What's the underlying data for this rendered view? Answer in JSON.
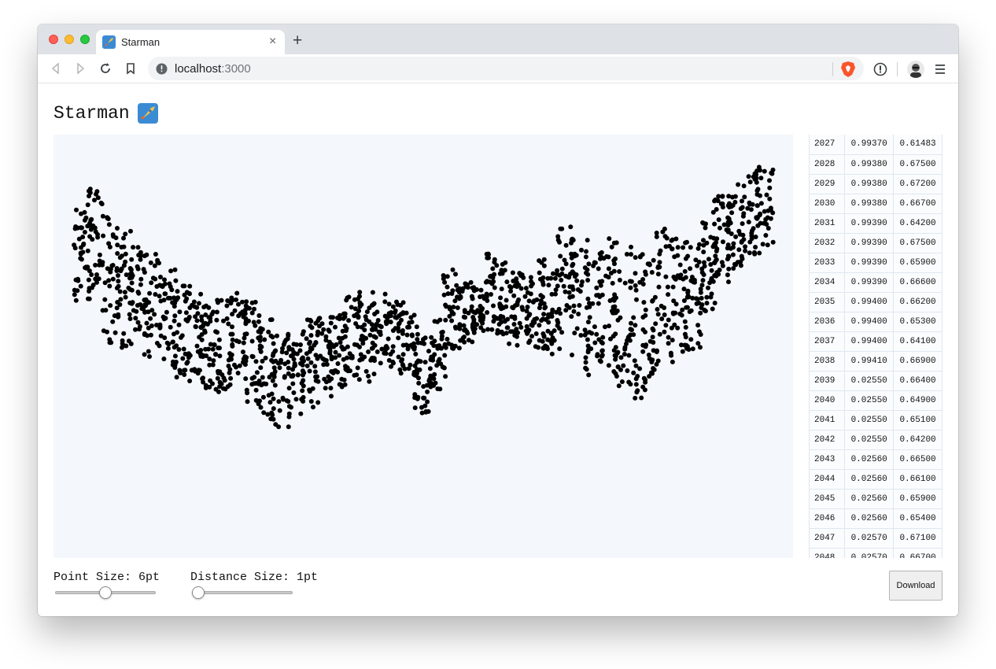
{
  "browser": {
    "tab": {
      "title": "Starman",
      "favicon": "rocket-emoji-icon"
    },
    "address": {
      "host": "localhost",
      "port": ":3000"
    }
  },
  "page": {
    "title": "Starman",
    "controls": {
      "point_size_label": "Point Size: 6pt",
      "point_size_value": 6,
      "point_size_level": 0.5,
      "distance_size_label": "Distance Size: 1pt",
      "distance_size_value": 1,
      "distance_size_level": 0.0,
      "download_label": "Download"
    },
    "table": {
      "rows": [
        [
          "2027",
          "0.99370",
          "0.61483"
        ],
        [
          "2028",
          "0.99380",
          "0.67500"
        ],
        [
          "2029",
          "0.99380",
          "0.67200"
        ],
        [
          "2030",
          "0.99380",
          "0.66700"
        ],
        [
          "2031",
          "0.99390",
          "0.64200"
        ],
        [
          "2032",
          "0.99390",
          "0.67500"
        ],
        [
          "2033",
          "0.99390",
          "0.65900"
        ],
        [
          "2034",
          "0.99390",
          "0.66600"
        ],
        [
          "2035",
          "0.99400",
          "0.66200"
        ],
        [
          "2036",
          "0.99400",
          "0.65300"
        ],
        [
          "2037",
          "0.99400",
          "0.64100"
        ],
        [
          "2038",
          "0.99410",
          "0.66900"
        ],
        [
          "2039",
          "0.02550",
          "0.66400"
        ],
        [
          "2040",
          "0.02550",
          "0.64900"
        ],
        [
          "2041",
          "0.02550",
          "0.65100"
        ],
        [
          "2042",
          "0.02550",
          "0.64200"
        ],
        [
          "2043",
          "0.02560",
          "0.66500"
        ],
        [
          "2044",
          "0.02560",
          "0.66100"
        ],
        [
          "2045",
          "0.02560",
          "0.65900"
        ],
        [
          "2046",
          "0.02560",
          "0.65400"
        ],
        [
          "2047",
          "0.02570",
          "0.67100"
        ],
        [
          "2048",
          "0.02570",
          "0.66700"
        ]
      ]
    }
  },
  "chart_data": {
    "type": "scatter",
    "title": "",
    "xlabel": "",
    "ylabel": "",
    "grid": false,
    "marker_color": "#000000",
    "background": "#f4f7fb",
    "columns": [
      [
        0.02,
        0.15,
        0.45
      ],
      [
        0.04,
        0.1,
        0.42
      ],
      [
        0.06,
        0.18,
        0.58
      ],
      [
        0.08,
        0.22,
        0.6
      ],
      [
        0.1,
        0.28,
        0.55
      ],
      [
        0.12,
        0.3,
        0.62
      ],
      [
        0.14,
        0.35,
        0.65
      ],
      [
        0.16,
        0.4,
        0.7
      ],
      [
        0.18,
        0.42,
        0.68
      ],
      [
        0.2,
        0.45,
        0.72
      ],
      [
        0.22,
        0.44,
        0.74
      ],
      [
        0.24,
        0.42,
        0.7
      ],
      [
        0.26,
        0.45,
        0.78
      ],
      [
        0.28,
        0.5,
        0.82
      ],
      [
        0.3,
        0.55,
        0.85
      ],
      [
        0.32,
        0.55,
        0.8
      ],
      [
        0.34,
        0.5,
        0.78
      ],
      [
        0.36,
        0.5,
        0.75
      ],
      [
        0.38,
        0.48,
        0.72
      ],
      [
        0.4,
        0.42,
        0.68
      ],
      [
        0.42,
        0.45,
        0.7
      ],
      [
        0.44,
        0.42,
        0.65
      ],
      [
        0.46,
        0.45,
        0.68
      ],
      [
        0.48,
        0.48,
        0.68
      ],
      [
        0.5,
        0.55,
        0.8
      ],
      [
        0.52,
        0.5,
        0.72
      ],
      [
        0.54,
        0.35,
        0.6
      ],
      [
        0.56,
        0.38,
        0.58
      ],
      [
        0.58,
        0.4,
        0.55
      ],
      [
        0.6,
        0.3,
        0.55
      ],
      [
        0.62,
        0.32,
        0.58
      ],
      [
        0.64,
        0.35,
        0.62
      ],
      [
        0.66,
        0.3,
        0.6
      ],
      [
        0.68,
        0.35,
        0.62
      ],
      [
        0.7,
        0.2,
        0.55
      ],
      [
        0.72,
        0.25,
        0.62
      ],
      [
        0.74,
        0.3,
        0.7
      ],
      [
        0.76,
        0.22,
        0.68
      ],
      [
        0.78,
        0.3,
        0.72
      ],
      [
        0.8,
        0.28,
        0.75
      ],
      [
        0.82,
        0.3,
        0.7
      ],
      [
        0.84,
        0.22,
        0.65
      ],
      [
        0.86,
        0.25,
        0.62
      ],
      [
        0.88,
        0.28,
        0.6
      ],
      [
        0.9,
        0.2,
        0.48
      ],
      [
        0.92,
        0.12,
        0.4
      ],
      [
        0.94,
        0.08,
        0.35
      ],
      [
        0.96,
        0.04,
        0.32
      ],
      [
        0.98,
        0.02,
        0.3
      ]
    ]
  }
}
